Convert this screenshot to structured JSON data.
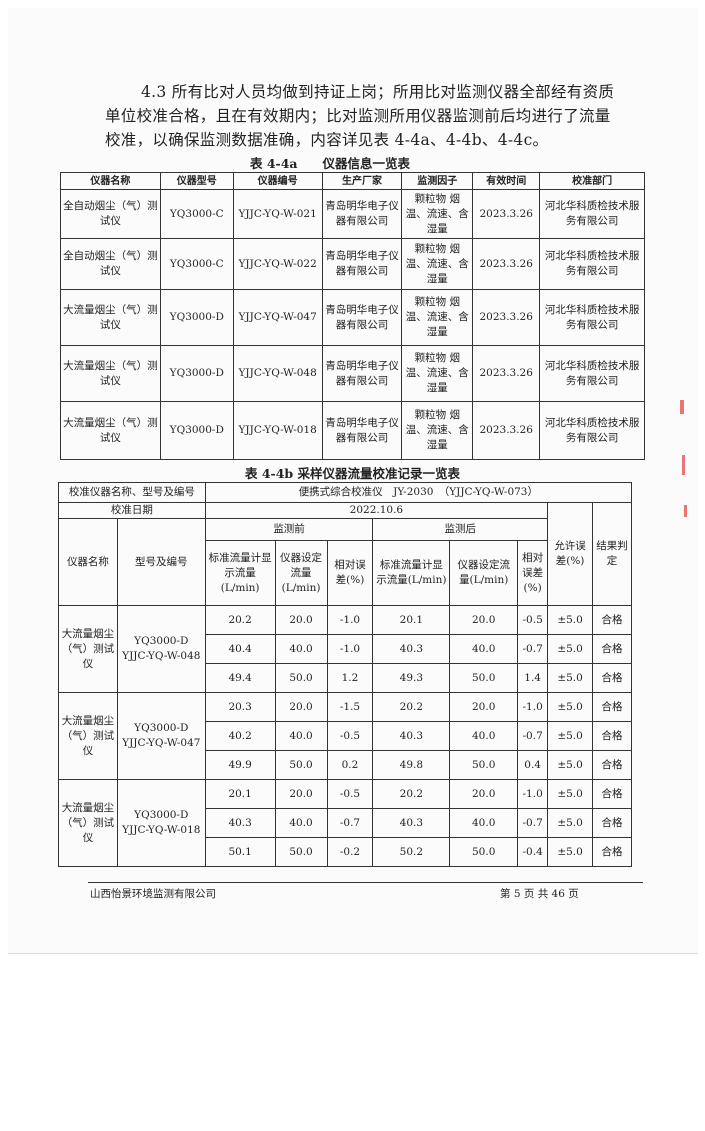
{
  "paragraph": "4.3 所有比对人员均做到持证上岗；所用比对监测仪器全部经有资质单位校准合格，且在有效期内；比对监测所用仪器监测前后均进行了流量校准，以确保监测数据准确，内容详见表 4-4a、4-4b、4-4c。",
  "table_a": {
    "caption": "表 4-4a　　仪器信息一览表",
    "headers": [
      "仪器名称",
      "仪器型号",
      "仪器编号",
      "生产厂家",
      "监测因子",
      "有效时间",
      "校准部门"
    ],
    "rows": [
      [
        "全自动烟尘（气）测试仪",
        "YQ3000-C",
        "YJJC-YQ-W-021",
        "青岛明华电子仪器有限公司",
        "颗粒物 烟温、流速、含湿量",
        "2023.3.26",
        "河北华科质检技术服务有限公司"
      ],
      [
        "全自动烟尘（气）测试仪",
        "YQ3000-C",
        "YJJC-YQ-W-022",
        "青岛明华电子仪器有限公司",
        "颗粒物 烟温、流速、含湿量",
        "2023.3.26",
        "河北华科质检技术服务有限公司"
      ],
      [
        "大流量烟尘（气）测试仪",
        "YQ3000-D",
        "YJJC-YQ-W-047",
        "青岛明华电子仪器有限公司",
        "颗粒物 烟温、流速、含湿量",
        "2023.3.26",
        "河北华科质检技术服务有限公司"
      ],
      [
        "大流量烟尘（气）测试仪",
        "YQ3000-D",
        "YJJC-YQ-W-048",
        "青岛明华电子仪器有限公司",
        "颗粒物 烟温、流速、含湿量",
        "2023.3.26",
        "河北华科质检技术服务有限公司"
      ],
      [
        "大流量烟尘（气）测试仪",
        "YQ3000-D",
        "YJJC-YQ-W-018",
        "青岛明华电子仪器有限公司",
        "颗粒物 烟温、流速、含湿量",
        "2023.3.26",
        "河北华科质检技术服务有限公司"
      ]
    ]
  },
  "table_b": {
    "caption": "表 4-4b 采样仪器流量校准记录一览表",
    "calib_label": "校准仪器名称、型号及编号",
    "calib_value": "便携式综合校准仪　JY-2030　（YJJC-YQ-W-073）",
    "date_label": "校准日期",
    "date_value": "2022.10.6",
    "h_name": "仪器名称",
    "h_model": "型号及编号",
    "h_before": "监测前",
    "h_after": "监测后",
    "h_std": "标准流量计显示流量(L/min)",
    "h_set": "仪器设定流量(L/min)",
    "h_err": "相对误差(%)",
    "h_allow": "允许误差(%)",
    "h_result": "结果判定",
    "groups": [
      {
        "name": "大流量烟尘（气）测试仪",
        "model": "YQ3000-D YJJC-YQ-W-048",
        "rows": [
          [
            "20.2",
            "20.0",
            "-1.0",
            "20.1",
            "20.0",
            "-0.5",
            "±5.0",
            "合格"
          ],
          [
            "40.4",
            "40.0",
            "-1.0",
            "40.3",
            "40.0",
            "-0.7",
            "±5.0",
            "合格"
          ],
          [
            "49.4",
            "50.0",
            "1.2",
            "49.3",
            "50.0",
            "1.4",
            "±5.0",
            "合格"
          ]
        ]
      },
      {
        "name": "大流量烟尘（气）测试仪",
        "model": "YQ3000-D YJJC-YQ-W-047",
        "rows": [
          [
            "20.3",
            "20.0",
            "-1.5",
            "20.2",
            "20.0",
            "-1.0",
            "±5.0",
            "合格"
          ],
          [
            "40.2",
            "40.0",
            "-0.5",
            "40.3",
            "40.0",
            "-0.7",
            "±5.0",
            "合格"
          ],
          [
            "49.9",
            "50.0",
            "0.2",
            "49.8",
            "50.0",
            "0.4",
            "±5.0",
            "合格"
          ]
        ]
      },
      {
        "name": "大流量烟尘（气）测试仪",
        "model": "YQ3000-D YJJC-YQ-W-018",
        "rows": [
          [
            "20.1",
            "20.0",
            "-0.5",
            "20.2",
            "20.0",
            "-1.0",
            "±5.0",
            "合格"
          ],
          [
            "40.3",
            "40.0",
            "-0.7",
            "40.3",
            "40.0",
            "-0.7",
            "±5.0",
            "合格"
          ],
          [
            "50.1",
            "50.0",
            "-0.2",
            "50.2",
            "50.0",
            "-0.4",
            "±5.0",
            "合格"
          ]
        ]
      }
    ]
  },
  "footer": {
    "company": "山西怡景环境监测有限公司",
    "page": "第 5 页 共 46 页"
  }
}
